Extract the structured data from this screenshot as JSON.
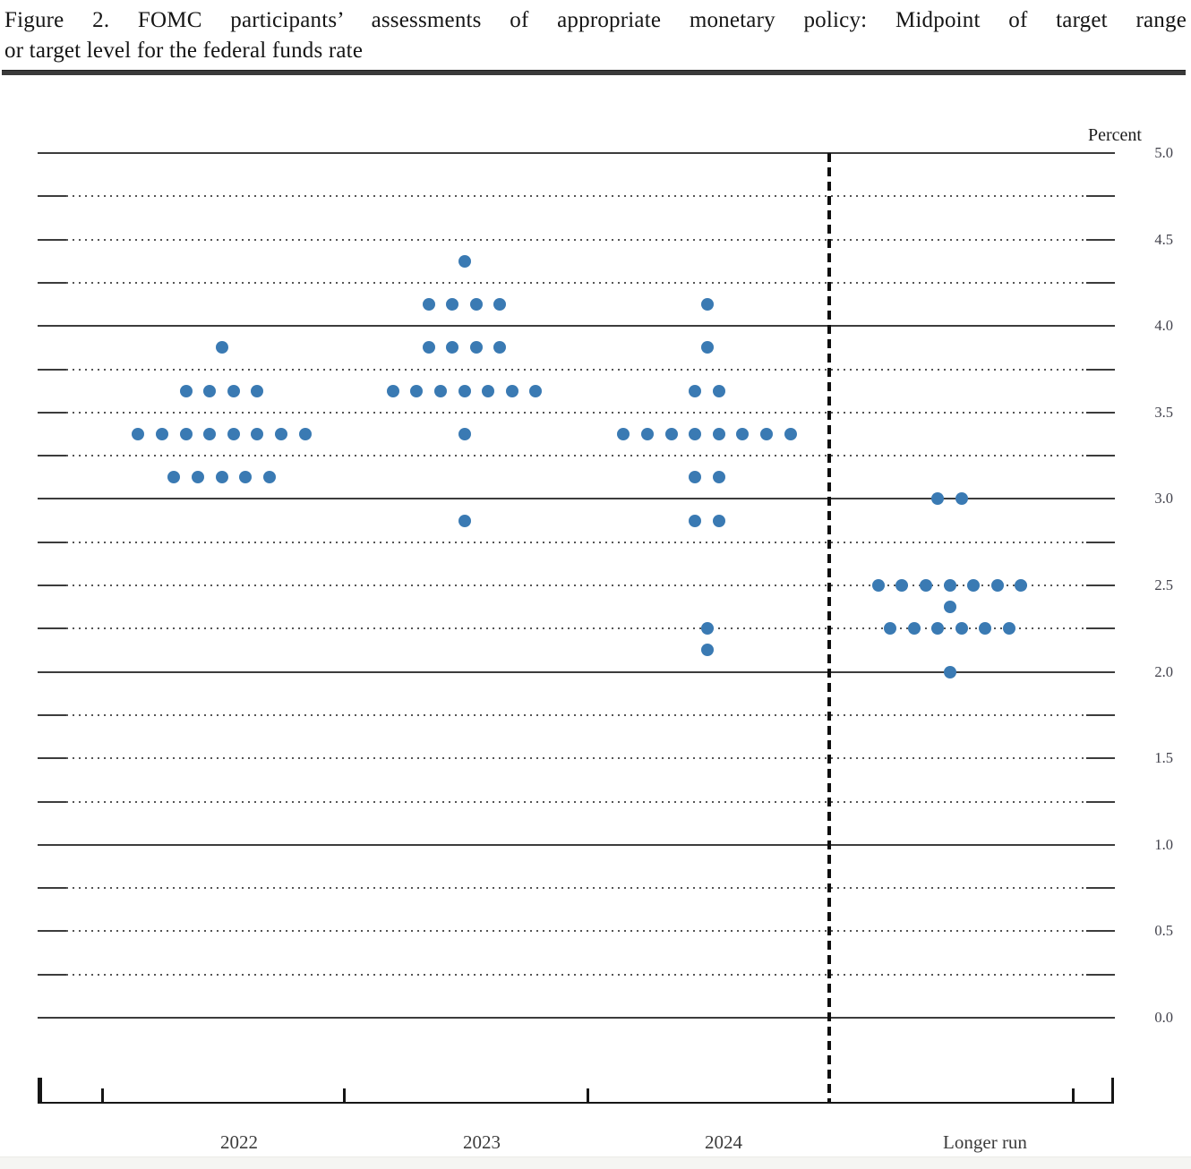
{
  "figure": {
    "title_line1": "Figure 2. FOMC participants’ assessments of appropriate monetary policy: Midpoint of target range",
    "title_line2": "or target level for the federal funds rate",
    "unit_label": "Percent"
  },
  "chart_data": {
    "type": "scatter",
    "title": "FOMC participants’ assessments of appropriate monetary policy: Midpoint of target range or target level for the federal funds rate",
    "ylabel": "Percent",
    "y_axis": {
      "min": 0.0,
      "max": 5.0,
      "grid_step": 0.25,
      "label_step": 0.5,
      "tick_labels": [
        "5.0",
        "4.5",
        "4.0",
        "3.5",
        "3.0",
        "2.5",
        "2.0",
        "1.5",
        "1.0",
        "0.5",
        "0.0"
      ],
      "grid": "solid lines at whole percents, dotted lines at quarter percents",
      "labels_position": "right"
    },
    "categories": [
      "2022",
      "2023",
      "2024",
      "Longer run"
    ],
    "series": [
      {
        "category": "2022",
        "dots": [
          {
            "rate": 3.875,
            "count": 1
          },
          {
            "rate": 3.625,
            "count": 4
          },
          {
            "rate": 3.375,
            "count": 8
          },
          {
            "rate": 3.125,
            "count": 5
          }
        ]
      },
      {
        "category": "2023",
        "dots": [
          {
            "rate": 4.375,
            "count": 1
          },
          {
            "rate": 4.125,
            "count": 4
          },
          {
            "rate": 3.875,
            "count": 4
          },
          {
            "rate": 3.625,
            "count": 7
          },
          {
            "rate": 3.375,
            "count": 1
          },
          {
            "rate": 2.875,
            "count": 1
          }
        ]
      },
      {
        "category": "2024",
        "dots": [
          {
            "rate": 4.125,
            "count": 1
          },
          {
            "rate": 3.875,
            "count": 1
          },
          {
            "rate": 3.625,
            "count": 2
          },
          {
            "rate": 3.375,
            "count": 8
          },
          {
            "rate": 3.125,
            "count": 2
          },
          {
            "rate": 2.875,
            "count": 2
          },
          {
            "rate": 2.25,
            "count": 1
          },
          {
            "rate": 2.125,
            "count": 1
          }
        ]
      },
      {
        "category": "Longer run",
        "dots": [
          {
            "rate": 3.0,
            "count": 2
          },
          {
            "rate": 2.5,
            "count": 7
          },
          {
            "rate": 2.375,
            "count": 1
          },
          {
            "rate": 2.25,
            "count": 6
          },
          {
            "rate": 2.0,
            "count": 1
          }
        ]
      }
    ],
    "divider": "dashed vertical line separating projection years from Longer run",
    "legend_position": "none",
    "colors": {
      "dot": "#3a7ab3"
    }
  }
}
